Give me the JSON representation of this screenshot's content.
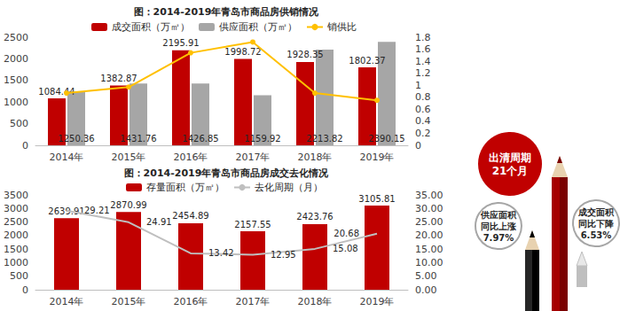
{
  "chart_data": [
    {
      "type": "bar",
      "title": "图：2014-2019年青岛市商品房供销情况",
      "categories": [
        "2014年",
        "2015年",
        "2016年",
        "2017年",
        "2018年",
        "2019年"
      ],
      "series": [
        {
          "name": "成交面积（万㎡）",
          "type": "bar",
          "color": "#C00000",
          "data_labels": true,
          "values": [
            1084.44,
            1382.87,
            2195.91,
            1998.72,
            1928.35,
            1802.37
          ]
        },
        {
          "name": "供应面积（万㎡）",
          "type": "bar",
          "color": "#A6A6A6",
          "data_labels": true,
          "values": [
            1250.36,
            1431.76,
            1426.85,
            1159.92,
            2213.82,
            2390.15
          ]
        },
        {
          "name": "销供比",
          "type": "line",
          "color": "#FFC000",
          "axis": "y2",
          "marker": "circle",
          "values": [
            0.87,
            0.97,
            1.54,
            1.72,
            0.87,
            0.75
          ]
        }
      ],
      "ylim": [
        0,
        2500
      ],
      "yticks": [
        0,
        500,
        1000,
        1500,
        2000,
        2500
      ],
      "y2lim": [
        0,
        1.8
      ],
      "y2ticks": [
        0,
        0.2,
        0.4,
        0.6,
        0.8,
        1,
        1.2,
        1.4,
        1.6,
        1.8
      ],
      "grid": false,
      "legend": "top",
      "annotations": [
        "出清周期\n21个月",
        "供应面积\n同比上涨\n7.97%",
        "成交面积\n同比下降\n6.53%"
      ]
    },
    {
      "type": "bar",
      "title": "图：2014-2019年青岛市商品房成交去化情况",
      "categories": [
        "2014年",
        "2015年",
        "2016年",
        "2017年",
        "2018年",
        "2019年"
      ],
      "series": [
        {
          "name": "存量面积（万㎡）",
          "type": "bar",
          "color": "#C00000",
          "data_labels": true,
          "values": [
            2639.91,
            2870.99,
            2454.89,
            2157.55,
            2423.76,
            3105.81
          ]
        },
        {
          "name": "去化周期（月）",
          "type": "line",
          "color": "#BFBFBF",
          "axis": "y2",
          "marker": "none",
          "data_labels": true,
          "values": [
            29.21,
            24.91,
            13.42,
            12.95,
            15.08,
            20.68
          ]
        }
      ],
      "ylim": [
        0,
        3500
      ],
      "yticks": [
        0,
        500,
        1000,
        1500,
        2000,
        2500,
        3000,
        3500
      ],
      "y2lim": [
        0,
        35
      ],
      "y2ticks": [
        {
          "value": 0,
          "label": "0.00"
        },
        {
          "value": 5,
          "label": "5.00"
        },
        {
          "value": 10,
          "label": "10.00"
        },
        {
          "value": 15,
          "label": "15.00"
        },
        {
          "value": 20,
          "label": "20.00"
        },
        {
          "value": 25,
          "label": "25.00"
        },
        {
          "value": 30,
          "label": "30.00"
        },
        {
          "value": 35,
          "label": "35.00"
        }
      ],
      "grid": false,
      "legend": "top"
    }
  ]
}
